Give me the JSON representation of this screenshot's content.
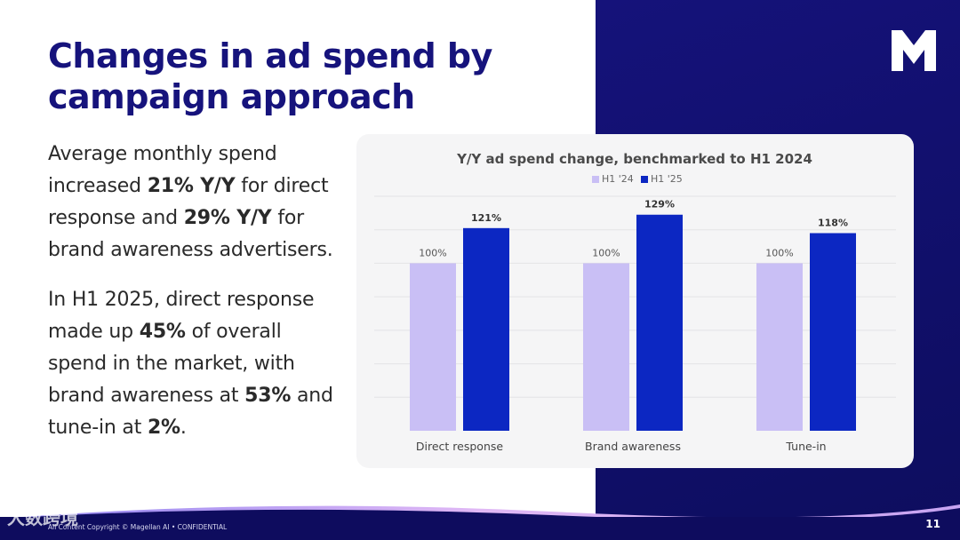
{
  "slide": {
    "title": "Changes in ad spend by campaign approach",
    "paragraph1": {
      "t1": "Average monthly spend increased ",
      "b1": "21% Y/Y",
      "t2": " for direct response and ",
      "b2": "29% Y/Y",
      "t3": " for brand awareness advertisers."
    },
    "paragraph2": {
      "t1": "In H1 2025, direct response made up ",
      "b1": "45%",
      "t2": " of overall spend in the market, with brand awareness at ",
      "b2": "53%",
      "t3": " and tune-in at ",
      "b3": "2%",
      "t4": "."
    },
    "footer": "All Content Copyright © Magellan AI • CONFIDENTIAL",
    "page_number": "11",
    "watermark": "大数跨境"
  },
  "colors": {
    "navy": "#16137c",
    "h1_24": "#c9bff5",
    "h1_25": "#0c27c2"
  },
  "chart_data": {
    "type": "bar",
    "title": "Y/Y ad spend change, benchmarked to H1 2024",
    "categories": [
      "Direct response",
      "Brand awareness",
      "Tune-in"
    ],
    "series": [
      {
        "name": "H1 '24",
        "values": [
          100,
          100,
          100
        ],
        "labels": [
          "100%",
          "100%",
          "100%"
        ]
      },
      {
        "name": "H1 '25",
        "values": [
          121,
          129,
          118
        ],
        "labels": [
          "121%",
          "129%",
          "118%"
        ]
      }
    ],
    "xlabel": "",
    "ylabel": "",
    "ylim": [
      0,
      140
    ],
    "grid": true,
    "legend": "top-center"
  }
}
